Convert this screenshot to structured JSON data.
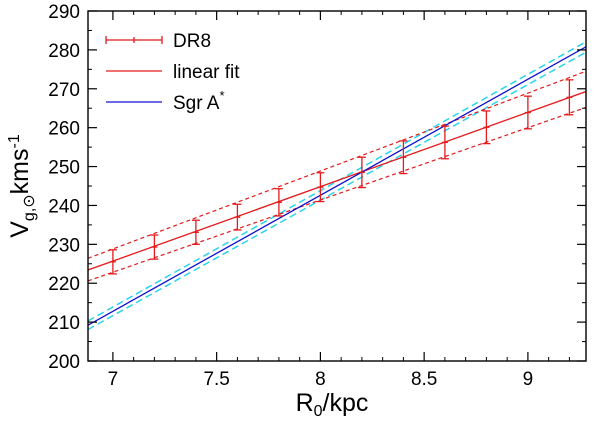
{
  "chart_data": {
    "type": "line",
    "xlabel": {
      "main": "R",
      "sub": "0",
      "rest": "/kpc"
    },
    "ylabel": {
      "main": "V",
      "sub": "g,⊙",
      "rest": "kms",
      "sup": "-1"
    },
    "xlim": [
      6.88,
      9.28
    ],
    "ylim": [
      200,
      290
    ],
    "xticks": [
      7,
      7.5,
      8,
      8.5,
      9
    ],
    "xtick_labels": [
      "7",
      "7.5",
      "8",
      "8.5",
      "9"
    ],
    "yticks": [
      200,
      210,
      220,
      230,
      240,
      250,
      260,
      270,
      280,
      290
    ],
    "ytick_labels": [
      "200",
      "210",
      "220",
      "230",
      "240",
      "250",
      "260",
      "270",
      "280",
      "290"
    ],
    "series": [
      {
        "name": "DR8",
        "kind": "errorbar",
        "color": "#e41a1c",
        "x": [
          7.0,
          7.2,
          7.4,
          7.6,
          7.8,
          8.0,
          8.2,
          8.4,
          8.6,
          8.8,
          9.0,
          9.2
        ],
        "y": [
          225.5,
          229.3,
          233.1,
          237.0,
          240.8,
          244.7,
          248.5,
          252.4,
          256.2,
          260.1,
          263.9,
          267.8
        ],
        "yerr": [
          3.1,
          3.1,
          3.1,
          3.3,
          3.5,
          3.7,
          3.9,
          4.2,
          4.2,
          4.2,
          4.2,
          4.5
        ]
      },
      {
        "name": "linear fit",
        "kind": "line",
        "color": "#e41a1c",
        "x": [
          6.88,
          9.28
        ],
        "y": [
          223.4,
          269.3
        ],
        "band": {
          "upper": [
            226.4,
            274.5
          ],
          "lower": [
            220.6,
            265.2
          ],
          "style": "dashed"
        }
      },
      {
        "name": "Sgr A",
        "name_sup": "*",
        "kind": "line",
        "color": "#1010d0",
        "x": [
          6.88,
          9.28
        ],
        "y": [
          209.2,
          280.8
        ],
        "band": {
          "upper": [
            210.3,
            282.1
          ],
          "lower": [
            208.1,
            279.4
          ],
          "style": "dashed",
          "color": "#2ad4e8"
        }
      }
    ],
    "legend": {
      "position": "top-left"
    },
    "grid": false
  }
}
